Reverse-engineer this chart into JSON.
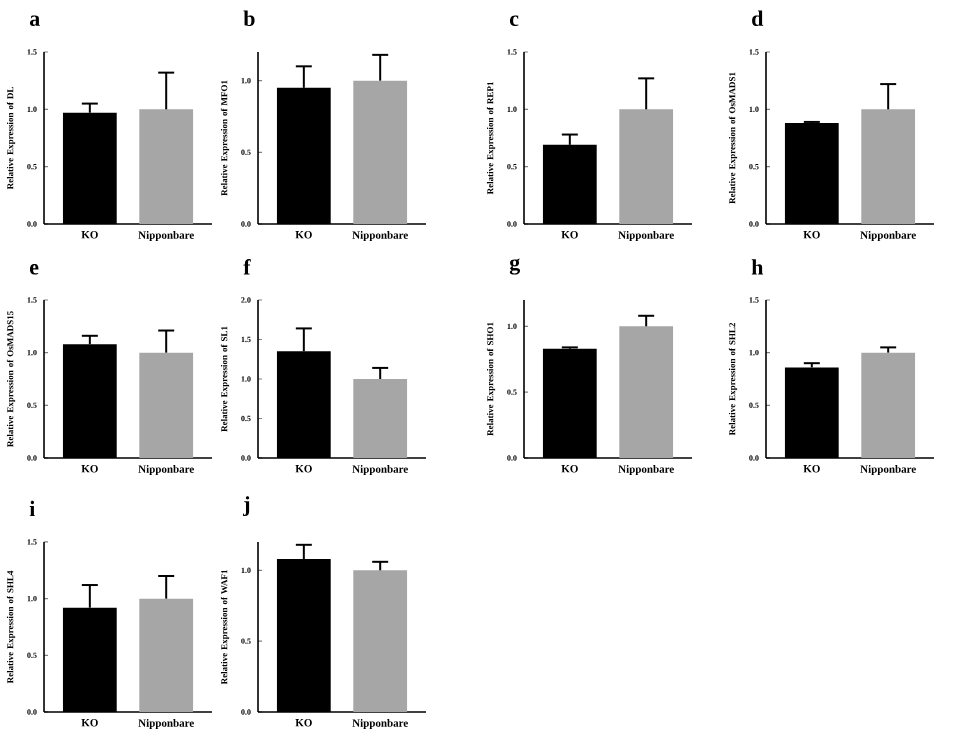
{
  "chart_data": [
    {
      "type": "bar",
      "title": "a",
      "ylabel": "Relative Expression of DL",
      "categories": [
        "KO",
        "Nipponbare"
      ],
      "values": [
        0.97,
        1.0
      ],
      "colors": [
        "#000000",
        "#a6a6a6"
      ],
      "errors": [
        [
          0.97,
          1.05
        ],
        [
          1.0,
          1.32
        ]
      ],
      "ylim": [
        0,
        1.5
      ],
      "yticks": [
        {
          "value": 0,
          "label": "0.0"
        },
        {
          "value": 0.5,
          "label": "0.5"
        },
        {
          "value": 1,
          "label": "1.0"
        },
        {
          "value": 1.5,
          "label": "1.5"
        }
      ]
    },
    {
      "type": "bar",
      "title": "b",
      "ylabel": "Relative Expression of MFO1",
      "categories": [
        "KO",
        "Nipponbare"
      ],
      "values": [
        0.95,
        1.0
      ],
      "colors": [
        "#000000",
        "#a6a6a6"
      ],
      "errors": [
        [
          0.95,
          1.1
        ],
        [
          1.0,
          1.18
        ]
      ],
      "ylim": [
        0,
        1.2
      ],
      "yticks": [
        {
          "value": 0,
          "label": "0.0"
        },
        {
          "value": 0.5,
          "label": "0.5"
        },
        {
          "value": 1,
          "label": "1.0"
        }
      ]
    },
    {
      "type": "bar",
      "title": "c",
      "ylabel": "Relative Expression of REP1",
      "categories": [
        "KO",
        "Nipponbare"
      ],
      "values": [
        0.69,
        1.0
      ],
      "colors": [
        "#000000",
        "#a6a6a6"
      ],
      "errors": [
        [
          0.69,
          0.78
        ],
        [
          1.0,
          1.27
        ]
      ],
      "ylim": [
        0,
        1.5
      ],
      "yticks": [
        {
          "value": 0,
          "label": "0.0"
        },
        {
          "value": 0.5,
          "label": "0.5"
        },
        {
          "value": 1,
          "label": "1.0"
        },
        {
          "value": 1.5,
          "label": "1.5"
        }
      ]
    },
    {
      "type": "bar",
      "title": "d",
      "ylabel": "Relative Expression of OsMADS1",
      "categories": [
        "KO",
        "Nipponbare"
      ],
      "values": [
        0.88,
        1.0
      ],
      "colors": [
        "#000000",
        "#a6a6a6"
      ],
      "errors": [
        [
          0.88,
          0.89
        ],
        [
          1.0,
          1.22
        ]
      ],
      "ylim": [
        0,
        1.5
      ],
      "yticks": [
        {
          "value": 0,
          "label": "0.0"
        },
        {
          "value": 0.5,
          "label": "0.5"
        },
        {
          "value": 1,
          "label": "1.0"
        },
        {
          "value": 1.5,
          "label": "1.5"
        }
      ]
    },
    {
      "type": "bar",
      "title": "e",
      "ylabel": "Relative Expression of OsMADS15",
      "categories": [
        "KO",
        "Nipponbare"
      ],
      "values": [
        1.08,
        1.0
      ],
      "colors": [
        "#000000",
        "#a6a6a6"
      ],
      "errors": [
        [
          1.08,
          1.16
        ],
        [
          1.0,
          1.21
        ]
      ],
      "ylim": [
        0,
        1.5
      ],
      "yticks": [
        {
          "value": 0,
          "label": "0.0"
        },
        {
          "value": 0.5,
          "label": "0.5"
        },
        {
          "value": 1,
          "label": "1.0"
        },
        {
          "value": 1.5,
          "label": "1.5"
        }
      ]
    },
    {
      "type": "bar",
      "title": "f",
      "ylabel": "Relative Expression of SL1",
      "categories": [
        "KO",
        "Nipponbare"
      ],
      "values": [
        1.35,
        1.0
      ],
      "colors": [
        "#000000",
        "#a6a6a6"
      ],
      "errors": [
        [
          1.35,
          1.64
        ],
        [
          1.0,
          1.14
        ]
      ],
      "ylim": [
        0,
        2.0
      ],
      "yticks": [
        {
          "value": 0,
          "label": "0.0"
        },
        {
          "value": 0.5,
          "label": "0.5"
        },
        {
          "value": 1,
          "label": "1.0"
        },
        {
          "value": 1.5,
          "label": "1.5"
        },
        {
          "value": 2,
          "label": "2.0"
        }
      ]
    },
    {
      "type": "bar",
      "title": "g",
      "ylabel": "Relative Expression of SHO1",
      "categories": [
        "KO",
        "Nipponbare"
      ],
      "values": [
        0.83,
        1.0
      ],
      "colors": [
        "#000000",
        "#a6a6a6"
      ],
      "errors": [
        [
          0.83,
          0.84
        ],
        [
          1.0,
          1.08
        ]
      ],
      "ylim": [
        0,
        1.2
      ],
      "yticks": [
        {
          "value": 0,
          "label": "0.0"
        },
        {
          "value": 0.5,
          "label": "0.5"
        },
        {
          "value": 1,
          "label": "1.0"
        }
      ]
    },
    {
      "type": "bar",
      "title": "h",
      "ylabel": "Relative Expression of SHL2",
      "categories": [
        "KO",
        "Nipponbare"
      ],
      "values": [
        0.86,
        1.0
      ],
      "colors": [
        "#000000",
        "#a6a6a6"
      ],
      "errors": [
        [
          0.86,
          0.9
        ],
        [
          1.0,
          1.05
        ]
      ],
      "ylim": [
        0,
        1.5
      ],
      "yticks": [
        {
          "value": 0,
          "label": "0.0"
        },
        {
          "value": 0.5,
          "label": "0.5"
        },
        {
          "value": 1,
          "label": "1.0"
        },
        {
          "value": 1.5,
          "label": "1.5"
        }
      ]
    },
    {
      "type": "bar",
      "title": "i",
      "ylabel": "Relative Expression of SHL4",
      "categories": [
        "KO",
        "Nipponbare"
      ],
      "values": [
        0.92,
        1.0
      ],
      "colors": [
        "#000000",
        "#a6a6a6"
      ],
      "errors": [
        [
          0.92,
          1.12
        ],
        [
          1.0,
          1.2
        ]
      ],
      "ylim": [
        0,
        1.5
      ],
      "yticks": [
        {
          "value": 0,
          "label": "0.0"
        },
        {
          "value": 0.5,
          "label": "0.5"
        },
        {
          "value": 1,
          "label": "1.0"
        },
        {
          "value": 1.5,
          "label": "1.5"
        }
      ]
    },
    {
      "type": "bar",
      "title": "j",
      "ylabel": "Relative Expression of WAF1",
      "categories": [
        "KO",
        "Nipponbare"
      ],
      "values": [
        1.08,
        1.0
      ],
      "colors": [
        "#000000",
        "#a6a6a6"
      ],
      "errors": [
        [
          1.08,
          1.18
        ],
        [
          1.0,
          1.06
        ]
      ],
      "ylim": [
        0,
        1.2
      ],
      "yticks": [
        {
          "value": 0,
          "label": "0.0"
        },
        {
          "value": 0.5,
          "label": "0.5"
        },
        {
          "value": 1,
          "label": "1.0"
        }
      ]
    }
  ]
}
